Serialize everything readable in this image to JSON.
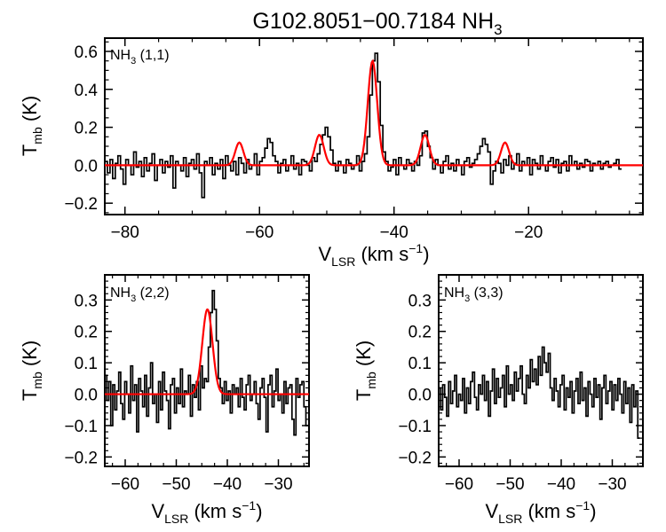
{
  "title": {
    "main": "G102.8051−00.7184 NH",
    "sub": "3"
  },
  "colors": {
    "spectrum": "#000000",
    "fit": "#ff0000",
    "axes": "#000000",
    "background": "#ffffff"
  },
  "chart_data": [
    {
      "id": "nh3_11",
      "type": "line",
      "label": {
        "prefix": "NH",
        "sub": "3",
        "suffix": " (1,1)"
      },
      "xlabel": {
        "main": "V",
        "sub": "LSR",
        "units": " (km s",
        "sup": "−1",
        "close": ")"
      },
      "ylabel": {
        "main": "T",
        "sub": "mb",
        "units": " (K)"
      },
      "xlim": [
        -83,
        -3
      ],
      "ylim": [
        -0.26,
        0.67
      ],
      "xticks": [
        -80,
        -60,
        -40,
        -20
      ],
      "xtick_labels": [
        "−80",
        "−60",
        "−40",
        "−20"
      ],
      "yticks": [
        -0.2,
        0.0,
        0.2,
        0.4,
        0.6
      ],
      "ytick_labels": [
        "−0.2",
        "0.0",
        "0.2",
        "0.4",
        "0.6"
      ],
      "spectrum": {
        "name": "observed",
        "x_start": -83.0,
        "x_step": 0.39,
        "values": [
          0.02,
          -0.04,
          0.03,
          -0.07,
          0.01,
          0.05,
          -0.02,
          -0.1,
          0.03,
          0.0,
          -0.05,
          0.07,
          -0.01,
          0.02,
          -0.06,
          0.04,
          -0.03,
          0.01,
          0.06,
          -0.08,
          0.0,
          0.03,
          -0.04,
          0.02,
          -0.01,
          0.05,
          -0.12,
          0.02,
          0.0,
          -0.03,
          0.04,
          -0.06,
          0.01,
          0.03,
          -0.02,
          0.06,
          -0.04,
          -0.17,
          0.02,
          0.0,
          0.04,
          -0.05,
          0.01,
          -0.02,
          0.03,
          -0.07,
          0.05,
          0.0,
          -0.03,
          0.02,
          -0.05,
          0.04,
          0.01,
          -0.04,
          0.03,
          -0.02,
          0.0,
          0.06,
          -0.05,
          0.02,
          0.04,
          0.09,
          0.14,
          0.12,
          0.05,
          0.02,
          -0.04,
          0.01,
          0.03,
          -0.03,
          0.0,
          0.05,
          -0.02,
          0.01,
          -0.05,
          0.03,
          0.02,
          0.0,
          -0.03,
          0.04,
          0.02,
          0.06,
          0.11,
          0.16,
          0.2,
          0.15,
          0.08,
          0.01,
          -0.03,
          0.02,
          0.0,
          -0.04,
          0.03,
          0.01,
          -0.02,
          0.0,
          0.05,
          -0.03,
          0.02,
          0.06,
          0.15,
          0.37,
          0.55,
          0.59,
          0.44,
          0.21,
          0.07,
          0.02,
          -0.03,
          -0.01,
          0.03,
          -0.05,
          0.04,
          0.0,
          -0.02,
          0.03,
          0.01,
          -0.03,
          0.02,
          0.0,
          0.05,
          0.17,
          0.18,
          0.1,
          0.04,
          -0.02,
          0.03,
          0.0,
          -0.04,
          0.02,
          0.05,
          -0.02,
          0.01,
          -0.03,
          0.03,
          0.0,
          -0.05,
          0.02,
          0.04,
          -0.01,
          0.01,
          0.03,
          0.06,
          0.1,
          0.14,
          0.11,
          0.07,
          -0.1,
          -0.03,
          0.02,
          0.01,
          -0.04,
          0.03,
          0.0,
          0.05,
          -0.02,
          0.01,
          0.06,
          -0.03,
          0.02,
          0.0,
          0.04,
          -0.05,
          0.03,
          0.01,
          -0.02,
          0.05,
          0.0,
          -0.03,
          0.02,
          0.04,
          -0.01,
          0.03,
          -0.04,
          0.01,
          0.02,
          -0.03,
          0.05,
          0.0,
          0.02,
          -0.02,
          0.01,
          -0.01,
          0.03,
          0.02,
          -0.03,
          0.01,
          0.0,
          0.02,
          -0.02,
          0.01,
          0.02,
          -0.01,
          0.0,
          0.01,
          0.03,
          -0.02
        ]
      },
      "fit": {
        "name": "model",
        "baseline": 0.0,
        "components": [
          {
            "center": -63.0,
            "amplitude": 0.12,
            "sigma": 0.6
          },
          {
            "center": -51.1,
            "amplitude": 0.16,
            "sigma": 0.65
          },
          {
            "center": -43.2,
            "amplitude": 0.55,
            "sigma": 0.7
          },
          {
            "center": -35.4,
            "amplitude": 0.16,
            "sigma": 0.65
          },
          {
            "center": -23.5,
            "amplitude": 0.12,
            "sigma": 0.6
          }
        ]
      }
    },
    {
      "id": "nh3_22",
      "type": "line",
      "label": {
        "prefix": "NH",
        "sub": "3",
        "suffix": " (2,2)"
      },
      "xlabel": {
        "main": "V",
        "sub": "LSR",
        "units": " (km s",
        "sup": "−1",
        "close": ")"
      },
      "ylabel": {
        "main": "T",
        "sub": "mb",
        "units": " (K)"
      },
      "xlim": [
        -64,
        -24
      ],
      "ylim": [
        -0.23,
        0.38
      ],
      "xticks": [
        -60,
        -50,
        -40,
        -30
      ],
      "xtick_labels": [
        "−60",
        "−50",
        "−40",
        "−30"
      ],
      "yticks": [
        -0.2,
        -0.1,
        0.0,
        0.1,
        0.2,
        0.3
      ],
      "ytick_labels": [
        "−0.2",
        "−0.1",
        "0.0",
        "0.1",
        "0.2",
        "0.3"
      ],
      "spectrum": {
        "name": "observed",
        "x_start": -64.0,
        "x_step": 0.39,
        "values": [
          0.06,
          -0.02,
          0.04,
          -0.1,
          0.03,
          -0.05,
          0.01,
          0.07,
          -0.03,
          -0.08,
          0.04,
          0.0,
          -0.06,
          0.09,
          -0.02,
          0.03,
          -0.12,
          0.05,
          0.01,
          -0.04,
          0.06,
          -0.07,
          0.02,
          0.1,
          -0.03,
          0.0,
          -0.09,
          0.04,
          -0.05,
          0.07,
          0.01,
          -0.02,
          -0.11,
          0.03,
          0.05,
          -0.06,
          0.02,
          -0.03,
          0.08,
          -0.04,
          0.01,
          0.0,
          0.06,
          -0.07,
          0.03,
          -0.01,
          0.04,
          -0.05,
          0.09,
          0.02,
          0.05,
          0.04,
          0.15,
          0.26,
          0.33,
          0.27,
          0.17,
          0.05,
          0.02,
          -0.03,
          0.04,
          -0.02,
          0.01,
          -0.06,
          0.03,
          0.0,
          0.02,
          -0.04,
          0.05,
          -0.01,
          -0.05,
          0.03,
          0.06,
          -0.02,
          0.0,
          0.04,
          -0.03,
          -0.08,
          0.02,
          0.05,
          -0.01,
          -0.12,
          0.03,
          0.06,
          -0.04,
          0.01,
          0.08,
          -0.02,
          0.0,
          -0.06,
          0.04,
          -0.03,
          0.02,
          0.03,
          -0.08,
          -0.13,
          0.05,
          -0.01,
          0.03,
          0.04,
          -0.04,
          -0.1
        ]
      },
      "fit": {
        "name": "model",
        "baseline": 0.0,
        "components": [
          {
            "center": -43.9,
            "amplitude": 0.27,
            "sigma": 1.0
          }
        ]
      }
    },
    {
      "id": "nh3_33",
      "type": "line",
      "label": {
        "prefix": "NH",
        "sub": "3",
        "suffix": " (3,3)"
      },
      "xlabel": {
        "main": "V",
        "sub": "LSR",
        "units": " (km s",
        "sup": "−1",
        "close": ")"
      },
      "ylabel": {
        "main": "T",
        "sub": "mb",
        "units": " (K)"
      },
      "xlim": [
        -64,
        -24
      ],
      "ylim": [
        -0.23,
        0.38
      ],
      "xticks": [
        -60,
        -50,
        -40,
        -30
      ],
      "xtick_labels": [
        "−60",
        "−50",
        "−40",
        "−30"
      ],
      "yticks": [
        -0.2,
        -0.1,
        0.0,
        0.1,
        0.2,
        0.3
      ],
      "ytick_labels": [
        "−0.2",
        "−0.1",
        "0.0",
        "0.1",
        "0.2",
        "0.3"
      ],
      "spectrum": {
        "name": "observed",
        "x_start": -64.0,
        "x_step": 0.39,
        "values": [
          0.02,
          -0.05,
          0.03,
          -0.01,
          -0.07,
          0.04,
          -0.03,
          0.01,
          0.06,
          -0.04,
          0.0,
          -0.02,
          0.05,
          -0.06,
          0.02,
          -0.03,
          0.04,
          0.07,
          -0.01,
          -0.05,
          0.03,
          0.0,
          0.06,
          -0.02,
          0.04,
          -0.07,
          0.01,
          0.08,
          -0.03,
          0.05,
          -0.01,
          0.02,
          0.06,
          -0.04,
          0.09,
          0.0,
          0.03,
          -0.02,
          0.07,
          0.01,
          0.05,
          0.09,
          0.0,
          -0.03,
          0.06,
          0.02,
          0.11,
          0.04,
          0.08,
          0.03,
          0.12,
          0.06,
          0.15,
          0.1,
          0.07,
          0.13,
          0.02,
          -0.02,
          0.05,
          0.01,
          -0.04,
          0.03,
          0.06,
          -0.05,
          0.02,
          -0.01,
          0.04,
          -0.06,
          0.01,
          0.05,
          -0.03,
          0.07,
          -0.02,
          0.02,
          -0.07,
          0.04,
          0.0,
          -0.04,
          0.05,
          -0.01,
          0.03,
          -0.08,
          0.02,
          0.06,
          -0.03,
          0.01,
          0.04,
          -0.05,
          0.03,
          -0.02,
          0.05,
          0.0,
          -0.06,
          0.04,
          -0.03,
          0.02,
          -0.09,
          0.03,
          -0.04,
          0.01,
          -0.14
        ]
      }
    }
  ]
}
